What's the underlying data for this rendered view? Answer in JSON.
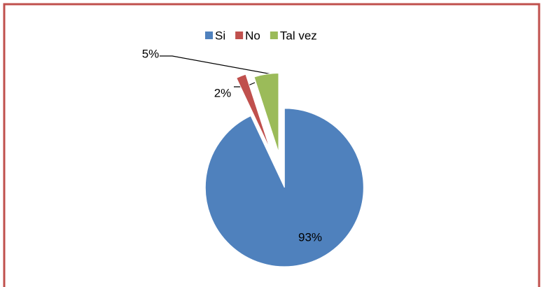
{
  "chart_data": {
    "type": "pie",
    "categories": [
      "Si",
      "No",
      "Tal vez"
    ],
    "values": [
      93,
      2,
      5
    ],
    "value_labels": [
      "93%",
      "2%",
      "5%"
    ],
    "colors": [
      "#4f81bd",
      "#c0504d",
      "#9bbb59"
    ],
    "legend": "top"
  }
}
